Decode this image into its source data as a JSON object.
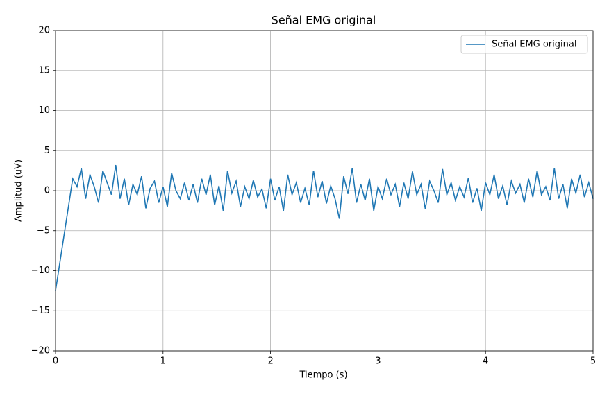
{
  "chart_data": {
    "type": "line",
    "title": "Señal EMG original",
    "xlabel": "Tiempo (s)",
    "ylabel": "Amplitud (uV)",
    "x": [
      0,
      0.04,
      0.08,
      0.12,
      0.16,
      0.2,
      0.24,
      0.28,
      0.32,
      0.36,
      0.4,
      0.44,
      0.48,
      0.52,
      0.56,
      0.6,
      0.64,
      0.68,
      0.72,
      0.76,
      0.8,
      0.84,
      0.88,
      0.92,
      0.96,
      1.0,
      1.04,
      1.08,
      1.12,
      1.16,
      1.2,
      1.24,
      1.28,
      1.32,
      1.36,
      1.4,
      1.44,
      1.48,
      1.52,
      1.56,
      1.6,
      1.64,
      1.68,
      1.72,
      1.76,
      1.8,
      1.84,
      1.88,
      1.92,
      1.96,
      2.0,
      2.04,
      2.08,
      2.12,
      2.16,
      2.2,
      2.24,
      2.28,
      2.32,
      2.36,
      2.4,
      2.44,
      2.48,
      2.52,
      2.56,
      2.6,
      2.64,
      2.68,
      2.72,
      2.76,
      2.8,
      2.84,
      2.88,
      2.92,
      2.96,
      3.0,
      3.04,
      3.08,
      3.12,
      3.16,
      3.2,
      3.24,
      3.28,
      3.32,
      3.36,
      3.4,
      3.44,
      3.48,
      3.52,
      3.56,
      3.6,
      3.64,
      3.68,
      3.72,
      3.76,
      3.8,
      3.84,
      3.88,
      3.92,
      3.96,
      4.0,
      4.04,
      4.08,
      4.12,
      4.16,
      4.2,
      4.24,
      4.28,
      4.32,
      4.36,
      4.4,
      4.44,
      4.48,
      4.52,
      4.56,
      4.6,
      4.64,
      4.68,
      4.72,
      4.76,
      4.8,
      4.84,
      4.88,
      4.92,
      4.96,
      5.0
    ],
    "series": [
      {
        "name": "Señal EMG original",
        "color": "#1f77b4",
        "values": [
          -12.5,
          -9,
          -5.5,
          -2,
          1.5,
          0.5,
          2.8,
          -1,
          2,
          0.5,
          -1.5,
          2.5,
          1,
          -0.5,
          3.2,
          -1,
          1.5,
          -1.8,
          0.8,
          -0.5,
          1.8,
          -2.2,
          0.3,
          1.2,
          -1.5,
          0.5,
          -2,
          2.2,
          0,
          -1,
          1,
          -1.2,
          0.8,
          -1.5,
          1.5,
          -0.5,
          2,
          -1.8,
          0.6,
          -2.5,
          2.5,
          -0.3,
          1.2,
          -2,
          0.5,
          -1,
          1.3,
          -0.8,
          0.2,
          -2.2,
          1.5,
          -1.2,
          0.5,
          -2.5,
          2,
          -0.5,
          1,
          -1.5,
          0.3,
          -1.8,
          2.5,
          -0.8,
          1.2,
          -1.6,
          0.6,
          -1,
          -3.5,
          1.8,
          -0.4,
          2.8,
          -1.5,
          0.8,
          -1.2,
          1.5,
          -2.5,
          0.5,
          -1,
          1.5,
          -0.5,
          0.8,
          -2,
          1,
          -1,
          2.4,
          -0.5,
          0.8,
          -2.3,
          1.2,
          0,
          -1.5,
          2.7,
          -0.5,
          1,
          -1.2,
          0.5,
          -0.8,
          1.6,
          -1.5,
          0.3,
          -2.5,
          1,
          -0.5,
          2,
          -1,
          0.6,
          -1.8,
          1.2,
          -0.3,
          0.8,
          -1.5,
          1.5,
          -0.8,
          2.5,
          -0.5,
          0.5,
          -1.2,
          2.8,
          -1,
          0.8,
          -2.2,
          1.5,
          -0.3,
          2,
          -0.8,
          1,
          -1
        ]
      }
    ],
    "xlim": [
      0,
      5
    ],
    "xticks": [
      0,
      1,
      2,
      3,
      4,
      5
    ],
    "ylim": [
      -20,
      20
    ],
    "yticks": [
      {
        "value": -20,
        "label": "−20"
      },
      {
        "value": -15,
        "label": "−15"
      },
      {
        "value": -10,
        "label": "−10"
      },
      {
        "value": -5,
        "label": "−5"
      },
      0,
      5,
      10,
      15,
      20
    ],
    "grid": true,
    "legend": "upper right"
  }
}
